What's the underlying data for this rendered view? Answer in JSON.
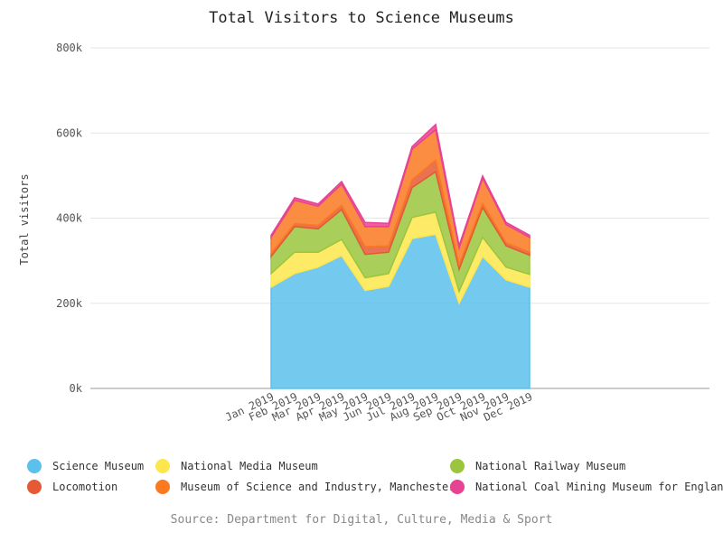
{
  "chart_data": {
    "type": "area",
    "stacked": true,
    "title": "Total Visitors to Science Museums",
    "ylabel": "Total visitors",
    "xlabel": "",
    "ylim": [
      0,
      800000
    ],
    "y_ticks": [
      {
        "value": 0,
        "label": "0k"
      },
      {
        "value": 200000,
        "label": "200k"
      },
      {
        "value": 400000,
        "label": "400k"
      },
      {
        "value": 600000,
        "label": "600k"
      },
      {
        "value": 800000,
        "label": "800k"
      }
    ],
    "categories": [
      "Jan 2019",
      "Feb 2019",
      "Mar 2019",
      "Apr 2019",
      "May 2019",
      "Jun 2019",
      "Jul 2019",
      "Aug 2019",
      "Sep 2019",
      "Oct 2019",
      "Nov 2019",
      "Dec 2019"
    ],
    "series": [
      {
        "name": "Science Museum",
        "color": "#5bc0eb",
        "values": [
          238000,
          270000,
          285000,
          312000,
          230000,
          240000,
          352000,
          362000,
          200000,
          310000,
          255000,
          238000
        ]
      },
      {
        "name": "National Media Museum",
        "color": "#fde74c",
        "values": [
          32000,
          50000,
          35000,
          38000,
          30000,
          30000,
          50000,
          52000,
          28000,
          45000,
          30000,
          30000
        ]
      },
      {
        "name": "National Railway Museum",
        "color": "#9bc53d",
        "values": [
          40000,
          60000,
          55000,
          70000,
          55000,
          50000,
          70000,
          95000,
          52000,
          70000,
          50000,
          45000
        ]
      },
      {
        "name": "Locomotion",
        "color": "#e55934",
        "values": [
          7000,
          7000,
          8000,
          10000,
          18000,
          15000,
          18000,
          27000,
          10000,
          9000,
          7000,
          7000
        ]
      },
      {
        "name": "Museum of Science and Industry, Manchester",
        "color": "#fa7921",
        "values": [
          38000,
          55000,
          45000,
          50000,
          47000,
          45000,
          72000,
          72000,
          40000,
          60000,
          43000,
          35000
        ]
      },
      {
        "name": "National Coal Mining Museum for England",
        "color": "#e84393",
        "values": [
          5000,
          6000,
          5000,
          6000,
          10000,
          8000,
          6000,
          12000,
          6000,
          5000,
          5000,
          5000
        ]
      }
    ],
    "grid": true,
    "legend_position": "bottom"
  },
  "source": "Source: Department for Digital, Culture, Media & Sport"
}
